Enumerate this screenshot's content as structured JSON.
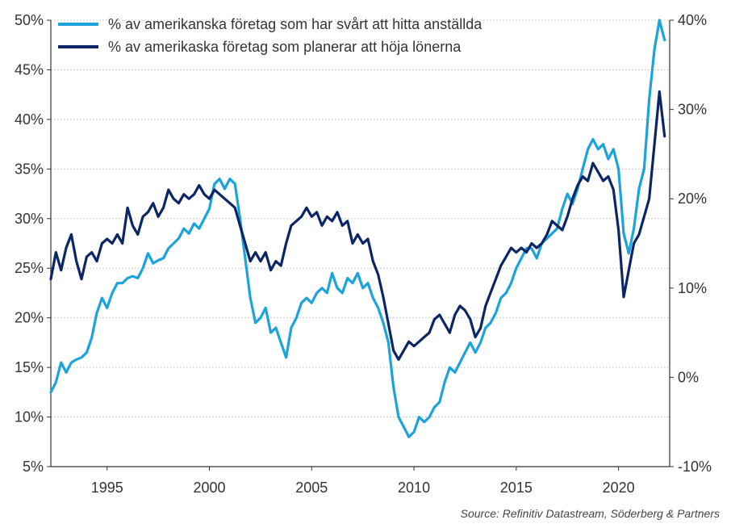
{
  "source": "Source: Refinitiv Datastream, Söderberg & Partners",
  "chart_data": {
    "type": "line",
    "legend_position": "top-left",
    "grid": "horizontal dotted",
    "x_ticks": [
      "1995",
      "2000",
      "2005",
      "2010",
      "2015",
      "2020"
    ],
    "xlim": [
      1992.25,
      2022.5
    ],
    "y_left": {
      "ylim": [
        5,
        50
      ],
      "ticks": [
        "5%",
        "10%",
        "15%",
        "20%",
        "25%",
        "30%",
        "35%",
        "40%",
        "45%",
        "50%"
      ]
    },
    "y_right": {
      "ylim": [
        -10,
        40
      ],
      "ticks": [
        "-10%",
        "0%",
        "10%",
        "20%",
        "30%",
        "40%"
      ]
    },
    "series": [
      {
        "name": "% av amerikanska företag som har svårt att hitta anställda",
        "color": "#1BA3DB",
        "axis": "left",
        "points": [
          [
            1992.25,
            12.5
          ],
          [
            1992.5,
            13.5
          ],
          [
            1992.75,
            15.5
          ],
          [
            1993,
            14.5
          ],
          [
            1993.25,
            15.5
          ],
          [
            1993.5,
            15.8
          ],
          [
            1993.75,
            16
          ],
          [
            1994,
            16.5
          ],
          [
            1994.25,
            18
          ],
          [
            1994.5,
            20.5
          ],
          [
            1994.75,
            22
          ],
          [
            1995,
            21
          ],
          [
            1995.25,
            22.5
          ],
          [
            1995.5,
            23.5
          ],
          [
            1995.75,
            23.5
          ],
          [
            1996,
            24
          ],
          [
            1996.25,
            24.2
          ],
          [
            1996.5,
            24
          ],
          [
            1996.75,
            25
          ],
          [
            1997,
            26.5
          ],
          [
            1997.25,
            25.5
          ],
          [
            1997.5,
            25.8
          ],
          [
            1997.75,
            26
          ],
          [
            1998,
            27
          ],
          [
            1998.25,
            27.5
          ],
          [
            1998.5,
            28
          ],
          [
            1998.75,
            29
          ],
          [
            1999,
            28.5
          ],
          [
            1999.25,
            29.5
          ],
          [
            1999.5,
            29
          ],
          [
            1999.75,
            30
          ],
          [
            2000,
            31
          ],
          [
            2000.25,
            33.5
          ],
          [
            2000.5,
            34
          ],
          [
            2000.75,
            33
          ],
          [
            2001,
            34
          ],
          [
            2001.25,
            33.5
          ],
          [
            2001.5,
            30
          ],
          [
            2001.75,
            26
          ],
          [
            2002,
            22
          ],
          [
            2002.25,
            19.5
          ],
          [
            2002.5,
            20
          ],
          [
            2002.75,
            21
          ],
          [
            2003,
            18.5
          ],
          [
            2003.25,
            19
          ],
          [
            2003.5,
            17.5
          ],
          [
            2003.75,
            16
          ],
          [
            2004,
            19
          ],
          [
            2004.25,
            20
          ],
          [
            2004.5,
            21.5
          ],
          [
            2004.75,
            22
          ],
          [
            2005,
            21.5
          ],
          [
            2005.25,
            22.5
          ],
          [
            2005.5,
            23
          ],
          [
            2005.75,
            22.5
          ],
          [
            2006,
            24.5
          ],
          [
            2006.25,
            23
          ],
          [
            2006.5,
            22.5
          ],
          [
            2006.75,
            24
          ],
          [
            2007,
            23.5
          ],
          [
            2007.25,
            24.5
          ],
          [
            2007.5,
            23
          ],
          [
            2007.75,
            23.5
          ],
          [
            2008,
            22
          ],
          [
            2008.25,
            21
          ],
          [
            2008.5,
            19.5
          ],
          [
            2008.75,
            17.5
          ],
          [
            2009,
            13
          ],
          [
            2009.25,
            10
          ],
          [
            2009.5,
            9
          ],
          [
            2009.75,
            8
          ],
          [
            2010,
            8.5
          ],
          [
            2010.25,
            10
          ],
          [
            2010.5,
            9.5
          ],
          [
            2010.75,
            10
          ],
          [
            2011,
            11
          ],
          [
            2011.25,
            11.5
          ],
          [
            2011.5,
            13.5
          ],
          [
            2011.75,
            15
          ],
          [
            2012,
            14.5
          ],
          [
            2012.25,
            15.5
          ],
          [
            2012.5,
            16.5
          ],
          [
            2012.75,
            17.5
          ],
          [
            2013,
            16.5
          ],
          [
            2013.25,
            17.5
          ],
          [
            2013.5,
            19
          ],
          [
            2013.75,
            19.5
          ],
          [
            2014,
            20.5
          ],
          [
            2014.25,
            22
          ],
          [
            2014.5,
            22.5
          ],
          [
            2014.75,
            23.5
          ],
          [
            2015,
            25
          ],
          [
            2015.25,
            26
          ],
          [
            2015.5,
            27
          ],
          [
            2015.75,
            27
          ],
          [
            2016,
            26
          ],
          [
            2016.25,
            27.5
          ],
          [
            2016.5,
            28
          ],
          [
            2016.75,
            28.5
          ],
          [
            2017,
            29
          ],
          [
            2017.25,
            31
          ],
          [
            2017.5,
            32.5
          ],
          [
            2017.75,
            31.5
          ],
          [
            2018,
            33
          ],
          [
            2018.25,
            35
          ],
          [
            2018.5,
            37
          ],
          [
            2018.75,
            38
          ],
          [
            2019,
            37
          ],
          [
            2019.25,
            37.5
          ],
          [
            2019.5,
            36
          ],
          [
            2019.75,
            37
          ],
          [
            2020,
            35
          ],
          [
            2020.25,
            28.5
          ],
          [
            2020.5,
            26.5
          ],
          [
            2020.75,
            29
          ],
          [
            2021,
            33
          ],
          [
            2021.25,
            35
          ],
          [
            2021.5,
            42
          ],
          [
            2021.75,
            47
          ],
          [
            2022,
            50
          ],
          [
            2022.25,
            48
          ]
        ]
      },
      {
        "name": "% av amerikaska företag som planerar att höja lönerna",
        "color": "#0B2566",
        "axis": "right",
        "points": [
          [
            1992.25,
            11
          ],
          [
            1992.5,
            14
          ],
          [
            1992.75,
            12
          ],
          [
            1993,
            14.5
          ],
          [
            1993.25,
            16
          ],
          [
            1993.5,
            13
          ],
          [
            1993.75,
            11
          ],
          [
            1994,
            13.5
          ],
          [
            1994.25,
            14
          ],
          [
            1994.5,
            13
          ],
          [
            1994.75,
            15
          ],
          [
            1995,
            15.5
          ],
          [
            1995.25,
            15
          ],
          [
            1995.5,
            16
          ],
          [
            1995.75,
            15
          ],
          [
            1996,
            19
          ],
          [
            1996.25,
            17
          ],
          [
            1996.5,
            16
          ],
          [
            1996.75,
            18
          ],
          [
            1997,
            18.5
          ],
          [
            1997.25,
            19.5
          ],
          [
            1997.5,
            18
          ],
          [
            1997.75,
            19
          ],
          [
            1998,
            21
          ],
          [
            1998.25,
            20
          ],
          [
            1998.5,
            19.5
          ],
          [
            1998.75,
            20.5
          ],
          [
            1999,
            20
          ],
          [
            1999.25,
            20.5
          ],
          [
            1999.5,
            21.5
          ],
          [
            1999.75,
            20.5
          ],
          [
            2000,
            20
          ],
          [
            2000.25,
            21
          ],
          [
            2000.5,
            20.5
          ],
          [
            2000.75,
            20
          ],
          [
            2001,
            19.5
          ],
          [
            2001.25,
            19
          ],
          [
            2001.5,
            17
          ],
          [
            2001.75,
            15
          ],
          [
            2002,
            13
          ],
          [
            2002.25,
            14
          ],
          [
            2002.5,
            13
          ],
          [
            2002.75,
            14
          ],
          [
            2003,
            12
          ],
          [
            2003.25,
            13
          ],
          [
            2003.5,
            12.5
          ],
          [
            2003.75,
            15
          ],
          [
            2004,
            17
          ],
          [
            2004.25,
            17.5
          ],
          [
            2004.5,
            18
          ],
          [
            2004.75,
            19
          ],
          [
            2005,
            18
          ],
          [
            2005.25,
            18.5
          ],
          [
            2005.5,
            17
          ],
          [
            2005.75,
            18
          ],
          [
            2006,
            17.5
          ],
          [
            2006.25,
            18.5
          ],
          [
            2006.5,
            17
          ],
          [
            2006.75,
            17.5
          ],
          [
            2007,
            15
          ],
          [
            2007.25,
            16
          ],
          [
            2007.5,
            15
          ],
          [
            2007.75,
            15.5
          ],
          [
            2008,
            13
          ],
          [
            2008.25,
            11.5
          ],
          [
            2008.5,
            9
          ],
          [
            2008.75,
            6
          ],
          [
            2009,
            3
          ],
          [
            2009.25,
            2
          ],
          [
            2009.5,
            3
          ],
          [
            2009.75,
            4
          ],
          [
            2010,
            3.5
          ],
          [
            2010.25,
            4
          ],
          [
            2010.5,
            4.5
          ],
          [
            2010.75,
            5
          ],
          [
            2011,
            6.5
          ],
          [
            2011.25,
            7
          ],
          [
            2011.5,
            6
          ],
          [
            2011.75,
            5
          ],
          [
            2012,
            7
          ],
          [
            2012.25,
            8
          ],
          [
            2012.5,
            7.5
          ],
          [
            2012.75,
            6.5
          ],
          [
            2013,
            4.5
          ],
          [
            2013.25,
            5.5
          ],
          [
            2013.5,
            8
          ],
          [
            2013.75,
            9.5
          ],
          [
            2014,
            11
          ],
          [
            2014.25,
            12.5
          ],
          [
            2014.5,
            13.5
          ],
          [
            2014.75,
            14.5
          ],
          [
            2015,
            14
          ],
          [
            2015.25,
            14.5
          ],
          [
            2015.5,
            14
          ],
          [
            2015.75,
            15
          ],
          [
            2016,
            14.5
          ],
          [
            2016.25,
            15
          ],
          [
            2016.5,
            16
          ],
          [
            2016.75,
            17.5
          ],
          [
            2017,
            17
          ],
          [
            2017.25,
            16.5
          ],
          [
            2017.5,
            18
          ],
          [
            2017.75,
            20
          ],
          [
            2018,
            21.5
          ],
          [
            2018.25,
            22.5
          ],
          [
            2018.5,
            22
          ],
          [
            2018.75,
            24
          ],
          [
            2019,
            23
          ],
          [
            2019.25,
            22
          ],
          [
            2019.5,
            22.5
          ],
          [
            2019.75,
            21
          ],
          [
            2020,
            16.5
          ],
          [
            2020.25,
            9
          ],
          [
            2020.5,
            12
          ],
          [
            2020.75,
            15
          ],
          [
            2021,
            16
          ],
          [
            2021.25,
            18
          ],
          [
            2021.5,
            20
          ],
          [
            2021.75,
            26
          ],
          [
            2022,
            32
          ],
          [
            2022.25,
            27
          ]
        ]
      }
    ]
  }
}
